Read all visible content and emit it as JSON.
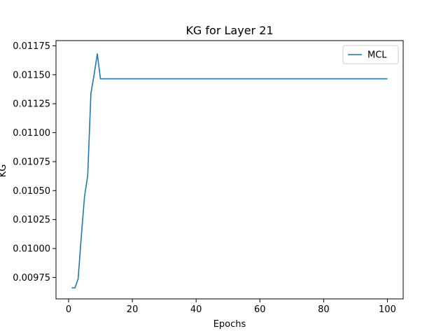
{
  "chart_data": {
    "type": "line",
    "title": "KG for Layer 21",
    "xlabel": "Epochs",
    "ylabel": "KG",
    "xlim": [
      -3.95,
      104.95
    ],
    "ylim": [
      0.009565,
      0.011795
    ],
    "xticks": [
      0,
      20,
      40,
      60,
      80,
      100
    ],
    "yticks": [
      0.00975,
      0.01,
      0.01025,
      0.0105,
      0.01075,
      0.011,
      0.01125,
      0.0115,
      0.01175
    ],
    "ytick_labels": [
      "0.00975",
      "0.01000",
      "0.01025",
      "0.01050",
      "0.01075",
      "0.01100",
      "0.01125",
      "0.01150",
      "0.01175"
    ],
    "grid": false,
    "legend": {
      "position": "top-right"
    },
    "series": [
      {
        "name": "MCL",
        "color": "#1f77b4",
        "x": [
          1,
          2,
          3,
          4,
          5,
          6,
          7,
          8,
          9,
          10,
          100
        ],
        "y": [
          0.00966,
          0.00966,
          0.00974,
          0.01011,
          0.01045,
          0.01063,
          0.01134,
          0.0115,
          0.01168,
          0.011465,
          0.011465
        ]
      }
    ]
  }
}
